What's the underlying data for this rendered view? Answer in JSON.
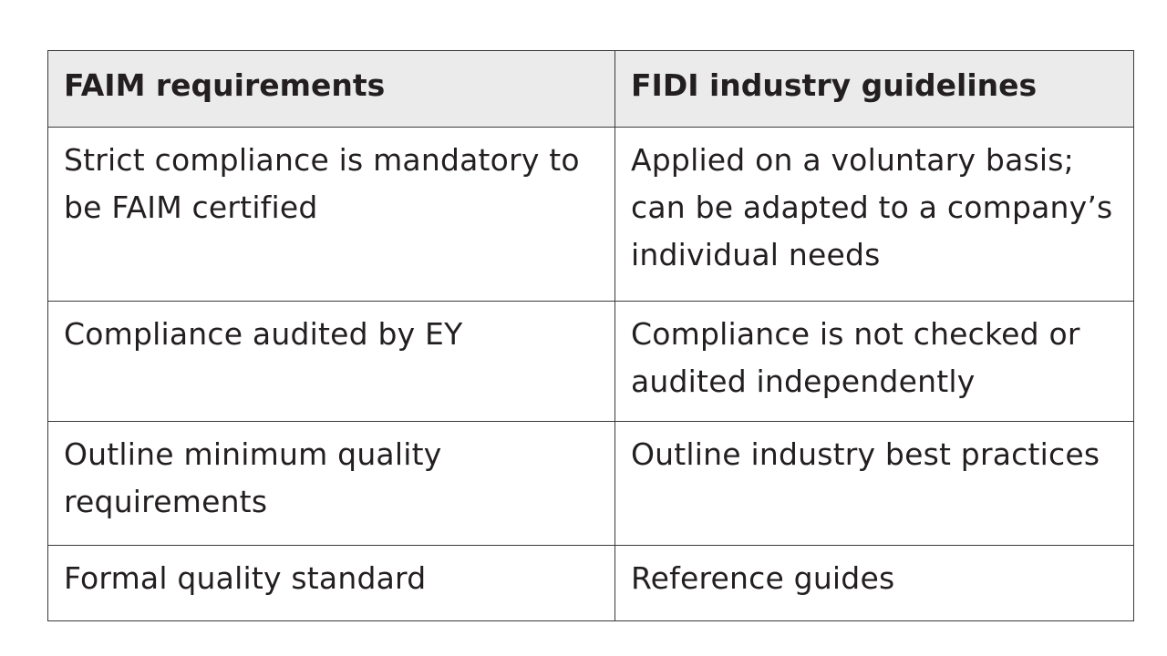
{
  "table": {
    "headers": [
      "FAIM requirements",
      "FIDI industry guidelines"
    ],
    "rows": [
      [
        "Strict compliance is mandatory to\nbe FAIM certified",
        "Applied on a voluntary basis;\ncan be adapted to a company’s\nindividual needs"
      ],
      [
        "Compliance audited by EY",
        "Compliance is not checked or\naudited independently"
      ],
      [
        "Outline minimum quality\nrequirements",
        "Outline industry best practices"
      ],
      [
        "Formal quality standard",
        "Reference guides"
      ]
    ]
  },
  "colors": {
    "header_bg": "#ebebeb",
    "border": "#3a3a3a",
    "text": "#231f20"
  }
}
